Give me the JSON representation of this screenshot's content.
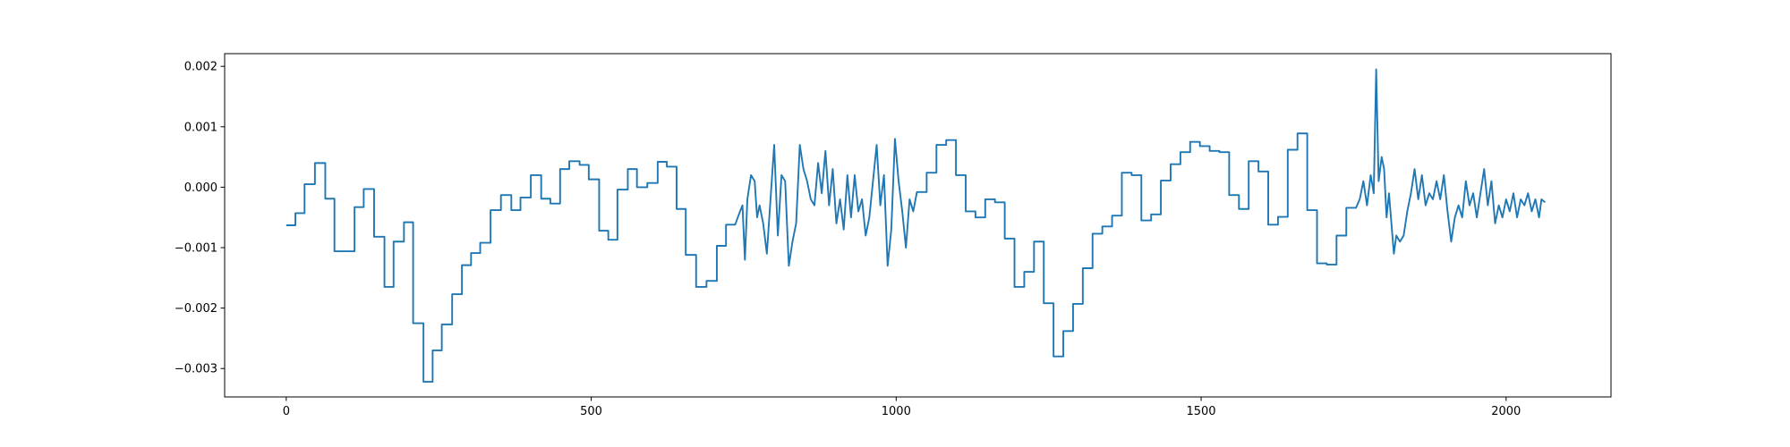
{
  "chart_data": {
    "type": "line",
    "color": "#1f77b4",
    "x": [
      0,
      15,
      15,
      30,
      30,
      47,
      47,
      64,
      64,
      79,
      79,
      112,
      112,
      127,
      127,
      144,
      144,
      161,
      161,
      176,
      176,
      193,
      193,
      208,
      208,
      225,
      225,
      240,
      240,
      255,
      255,
      272,
      272,
      288,
      288,
      303,
      303,
      318,
      318,
      335,
      335,
      352,
      352,
      369,
      369,
      384,
      384,
      401,
      401,
      418,
      418,
      433,
      433,
      449,
      449,
      464,
      464,
      481,
      481,
      496,
      496,
      513,
      513,
      528,
      528,
      543,
      543,
      560,
      560,
      575,
      575,
      592,
      592,
      609,
      609,
      624,
      624,
      640,
      640,
      655,
      655,
      672,
      672,
      689,
      689,
      706,
      706,
      721,
      721,
      736,
      744,
      748,
      752,
      756,
      762,
      768,
      772,
      776,
      782,
      788,
      794,
      800,
      806,
      812,
      818,
      824,
      830,
      836,
      842,
      848,
      854,
      860,
      866,
      872,
      878,
      884,
      890,
      896,
      902,
      908,
      914,
      920,
      926,
      932,
      938,
      944,
      950,
      956,
      962,
      968,
      974,
      980,
      986,
      992,
      998,
      1004,
      1010,
      1016,
      1022,
      1028,
      1034,
      1050,
      1050,
      1066,
      1066,
      1082,
      1082,
      1098,
      1098,
      1114,
      1114,
      1130,
      1130,
      1146,
      1146,
      1162,
      1162,
      1178,
      1178,
      1194,
      1194,
      1210,
      1210,
      1226,
      1226,
      1242,
      1242,
      1258,
      1258,
      1274,
      1274,
      1290,
      1290,
      1306,
      1306,
      1322,
      1322,
      1338,
      1338,
      1354,
      1354,
      1370,
      1370,
      1386,
      1386,
      1402,
      1402,
      1418,
      1418,
      1434,
      1434,
      1450,
      1450,
      1466,
      1466,
      1482,
      1482,
      1498,
      1498,
      1514,
      1514,
      1530,
      1530,
      1546,
      1546,
      1562,
      1562,
      1578,
      1578,
      1594,
      1594,
      1610,
      1610,
      1626,
      1626,
      1642,
      1642,
      1658,
      1658,
      1674,
      1674,
      1690,
      1690,
      1706,
      1706,
      1722,
      1722,
      1738,
      1738,
      1754,
      1760,
      1766,
      1772,
      1778,
      1783,
      1787,
      1791,
      1796,
      1800,
      1804,
      1808,
      1812,
      1816,
      1820,
      1826,
      1832,
      1838,
      1844,
      1850,
      1856,
      1862,
      1868,
      1874,
      1880,
      1886,
      1892,
      1898,
      1904,
      1910,
      1916,
      1922,
      1928,
      1934,
      1940,
      1946,
      1952,
      1958,
      1964,
      1970,
      1976,
      1982,
      1988,
      1994,
      2000,
      2006,
      2012,
      2018,
      2024,
      2030,
      2036,
      2042,
      2048,
      2054,
      2058,
      2064
    ],
    "values": [
      -0.00063,
      -0.00063,
      -0.00043,
      -0.00043,
      5e-05,
      5e-05,
      0.0004,
      0.0004,
      -0.00019,
      -0.00019,
      -0.00106,
      -0.00106,
      -0.00033,
      -0.00033,
      -3e-05,
      -3e-05,
      -0.00082,
      -0.00082,
      -0.00165,
      -0.00165,
      -0.0009,
      -0.0009,
      -0.00058,
      -0.00058,
      -0.00225,
      -0.00225,
      -0.00322,
      -0.00322,
      -0.0027,
      -0.0027,
      -0.00227,
      -0.00227,
      -0.00177,
      -0.00177,
      -0.00129,
      -0.00129,
      -0.00109,
      -0.00109,
      -0.00092,
      -0.00092,
      -0.00038,
      -0.00038,
      -0.00013,
      -0.00013,
      -0.00038,
      -0.00038,
      -0.00017,
      -0.00017,
      0.0002,
      0.0002,
      -0.00019,
      -0.00019,
      -0.00027,
      -0.00027,
      0.0003,
      0.0003,
      0.00043,
      0.00043,
      0.00037,
      0.00037,
      0.00013,
      0.00013,
      -0.00072,
      -0.00072,
      -0.00087,
      -0.00087,
      -4e-05,
      -4e-05,
      0.0003,
      0.0003,
      0,
      0,
      7e-05,
      7e-05,
      0.00042,
      0.00042,
      0.00034,
      0.00034,
      -0.00036,
      -0.00036,
      -0.00112,
      -0.00112,
      -0.00165,
      -0.00165,
      -0.00155,
      -0.00155,
      -0.00097,
      -0.00097,
      -0.00062,
      -0.00062,
      -0.0004,
      -0.0003,
      -0.0012,
      -0.0002,
      0.0002,
      0.0001,
      -0.0005,
      -0.0003,
      -0.0006,
      -0.0011,
      -0.0002,
      0.0007,
      -0.0008,
      0.0002,
      0.0001,
      -0.0013,
      -0.0009,
      -0.0006,
      0.0007,
      0.0003,
      0.0001,
      -0.0002,
      -0.0003,
      0.0004,
      -0.0001,
      0.0006,
      -0.0003,
      0.0003,
      -0.0006,
      -0.0002,
      -0.0007,
      0.0002,
      -0.0005,
      0.0002,
      -0.0004,
      -0.0002,
      -0.0008,
      -0.0005,
      0.0001,
      0.0007,
      -0.0003,
      0.0002,
      -0.0013,
      -0.0007,
      0.0008,
      0.0001,
      -0.0004,
      -0.001,
      -0.0002,
      -0.0004,
      -8e-05,
      -8e-05,
      0.00024,
      0.00024,
      0.0007,
      0.0007,
      0.00078,
      0.00078,
      0.0002,
      0.0002,
      -0.0004,
      -0.0004,
      -0.0005,
      -0.0005,
      -0.0002,
      -0.0002,
      -0.00025,
      -0.00025,
      -0.00085,
      -0.00085,
      -0.00165,
      -0.00165,
      -0.0014,
      -0.0014,
      -0.0009,
      -0.0009,
      -0.00192,
      -0.00192,
      -0.0028,
      -0.0028,
      -0.00238,
      -0.00238,
      -0.00193,
      -0.00193,
      -0.00134,
      -0.00134,
      -0.00077,
      -0.00077,
      -0.00065,
      -0.00065,
      -0.00047,
      -0.00047,
      0.00024,
      0.00024,
      0.0002,
      0.0002,
      -0.00055,
      -0.00055,
      -0.00045,
      -0.00045,
      0.00011,
      0.00011,
      0.00038,
      0.00038,
      0.00058,
      0.00058,
      0.00075,
      0.00075,
      0.00068,
      0.00068,
      0.0006,
      0.0006,
      0.00058,
      0.00058,
      -0.00013,
      -0.00013,
      -0.00036,
      -0.00036,
      0.00043,
      0.00043,
      0.00026,
      0.00026,
      -0.00062,
      -0.00062,
      -0.00049,
      -0.00049,
      0.00062,
      0.00062,
      0.00089,
      0.00089,
      -0.00038,
      -0.00038,
      -0.00126,
      -0.00126,
      -0.00128,
      -0.00128,
      -0.0008,
      -0.0008,
      -0.00034,
      -0.00034,
      -0.0002,
      0.0001,
      -0.0003,
      0.0002,
      -0.0001,
      0.00195,
      0.0001,
      0.0005,
      0.0003,
      -0.0005,
      -0.0001,
      -0.0006,
      -0.0011,
      -0.0008,
      -0.0009,
      -0.0008,
      -0.0004,
      -0.0001,
      0.0003,
      -0.0002,
      0.0002,
      -0.0003,
      -0.0001,
      -0.0002,
      0.0001,
      -0.0002,
      0.0002,
      -0.0004,
      -0.0009,
      -0.0005,
      -0.0003,
      -0.0005,
      0.0001,
      -0.0003,
      -0.0001,
      -0.0005,
      -0.0001,
      0.0003,
      -0.0003,
      0.0001,
      -0.0006,
      -0.0003,
      -0.0005,
      -0.0002,
      -0.0004,
      -0.0001,
      -0.0005,
      -0.0002,
      -0.0003,
      -0.0001,
      -0.0004,
      -0.0002,
      -0.0005,
      -0.0002,
      -0.00025
    ],
    "xlim": [
      -101,
      2172
    ],
    "xticks": [
      0,
      500,
      1000,
      1500,
      2000
    ],
    "ylim": [
      -0.00347,
      0.00221
    ],
    "yticks": [
      {
        "value": -0.003,
        "label": "−0.003"
      },
      {
        "value": -0.002,
        "label": "−0.002"
      },
      {
        "value": -0.001,
        "label": "−0.001"
      },
      {
        "value": 0,
        "label": "0.000"
      },
      {
        "value": 0.001,
        "label": "0.001"
      },
      {
        "value": 0.002,
        "label": "0.002"
      }
    ],
    "grid": false
  }
}
